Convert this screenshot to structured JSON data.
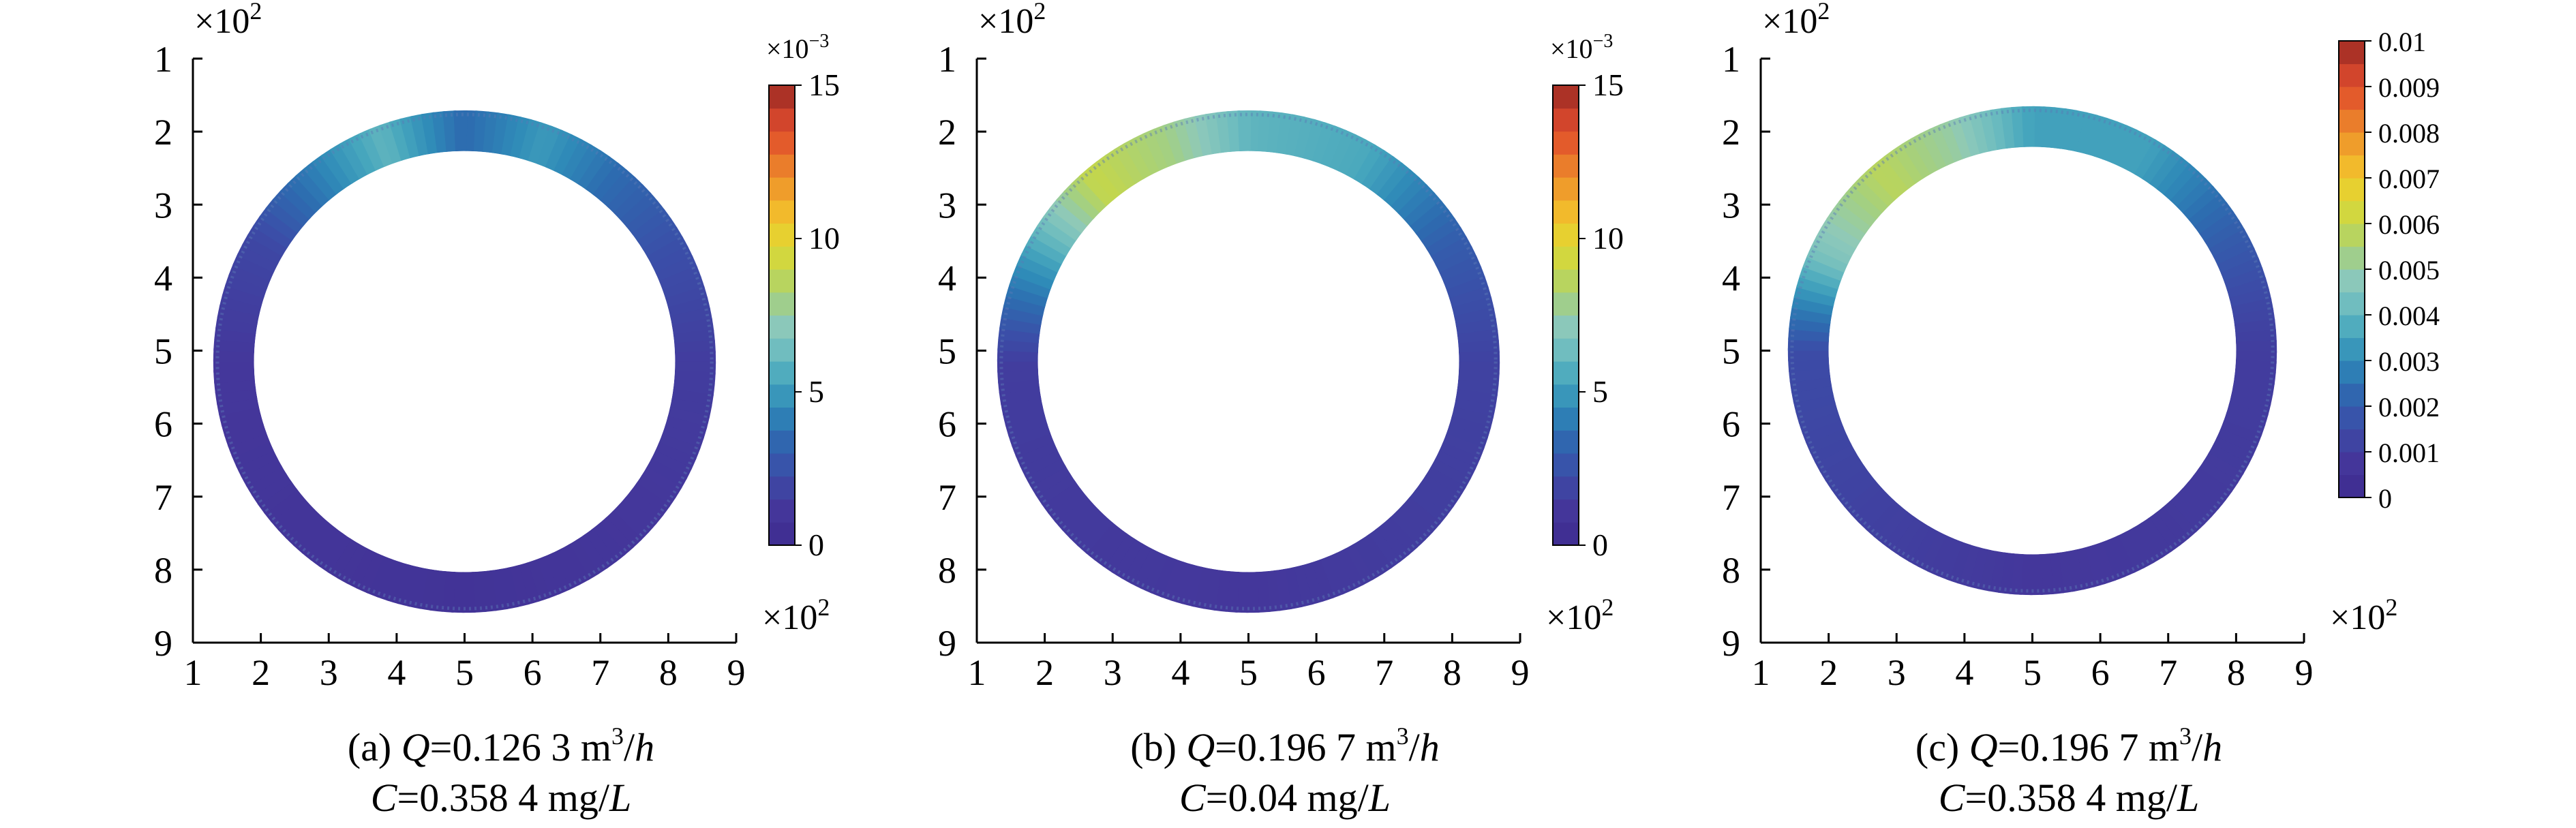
{
  "chart_data": [
    {
      "type": "heatmap",
      "panel_label": "(a)",
      "caption": {
        "q_value": "0.126 3",
        "q_unit_base": "m",
        "q_unit_exp": "3",
        "q_unit_den": "h",
        "c_value": "0.358 4",
        "c_unit": "mg/",
        "c_unit_den": "L"
      },
      "x_ticks": [
        "1",
        "2",
        "3",
        "4",
        "5",
        "6",
        "7",
        "8",
        "9"
      ],
      "y_ticks": [
        "1",
        "2",
        "3",
        "4",
        "5",
        "6",
        "7",
        "8",
        "9"
      ],
      "x_multiplier": "×10",
      "x_multiplier_exp": "2",
      "y_multiplier": "×10",
      "y_multiplier_exp": "2",
      "xlim": [
        1,
        9
      ],
      "ylim": [
        1,
        9
      ],
      "y_inverted": true,
      "ring": {
        "center_x": 5.0,
        "center_y": 5.15,
        "outer_radius": 3.7,
        "inner_radius": 3.1
      },
      "colorbar": {
        "multiplier": "×10",
        "multiplier_exp": "−3",
        "ticks": [
          "0",
          "5",
          "10",
          "15"
        ],
        "tick_values": [
          0,
          5,
          10,
          15
        ],
        "range": [
          0,
          15
        ]
      },
      "field": [
        {
          "angle_deg": 0,
          "value": 3.5
        },
        {
          "angle_deg": 20,
          "value": 5
        },
        {
          "angle_deg": 40,
          "value": 3.5
        },
        {
          "angle_deg": 60,
          "value": 2.5
        },
        {
          "angle_deg": 90,
          "value": 1.5
        },
        {
          "angle_deg": 180,
          "value": 0.8
        },
        {
          "angle_deg": 270,
          "value": 1.2
        },
        {
          "angle_deg": 300,
          "value": 2
        },
        {
          "angle_deg": 320,
          "value": 4
        },
        {
          "angle_deg": 340,
          "value": 6
        },
        {
          "angle_deg": 360,
          "value": 3.5
        }
      ]
    },
    {
      "type": "heatmap",
      "panel_label": "(b)",
      "caption": {
        "q_value": "0.196 7",
        "q_unit_base": "m",
        "q_unit_exp": "3",
        "q_unit_den": "h",
        "c_value": "0.04",
        "c_unit": "mg/",
        "c_unit_den": "L"
      },
      "x_ticks": [
        "1",
        "2",
        "3",
        "4",
        "5",
        "6",
        "7",
        "8",
        "9"
      ],
      "y_ticks": [
        "1",
        "2",
        "3",
        "4",
        "5",
        "6",
        "7",
        "8",
        "9"
      ],
      "x_multiplier": "×10",
      "x_multiplier_exp": "2",
      "y_multiplier": "×10",
      "y_multiplier_exp": "2",
      "xlim": [
        1,
        9
      ],
      "ylim": [
        1,
        9
      ],
      "y_inverted": true,
      "ring": {
        "center_x": 5.0,
        "center_y": 5.15,
        "outer_radius": 3.7,
        "inner_radius": 3.1
      },
      "colorbar": {
        "multiplier": "×10",
        "multiplier_exp": "−3",
        "ticks": [
          "0",
          "5",
          "10",
          "15"
        ],
        "tick_values": [
          0,
          5,
          10,
          15
        ],
        "range": [
          0,
          15
        ]
      },
      "field": [
        {
          "angle_deg": 0,
          "value": 6
        },
        {
          "angle_deg": 30,
          "value": 5.5
        },
        {
          "angle_deg": 60,
          "value": 3
        },
        {
          "angle_deg": 90,
          "value": 1.8
        },
        {
          "angle_deg": 180,
          "value": 1.2
        },
        {
          "angle_deg": 270,
          "value": 1.5
        },
        {
          "angle_deg": 295,
          "value": 5
        },
        {
          "angle_deg": 320,
          "value": 9
        },
        {
          "angle_deg": 340,
          "value": 8
        },
        {
          "angle_deg": 360,
          "value": 6
        }
      ]
    },
    {
      "type": "heatmap",
      "panel_label": "(c)",
      "caption": {
        "q_value": "0.196 7",
        "q_unit_base": "m",
        "q_unit_exp": "3",
        "q_unit_den": "h",
        "c_value": "0.358 4",
        "c_unit": "mg/",
        "c_unit_den": "L"
      },
      "x_ticks": [
        "1",
        "2",
        "3",
        "4",
        "5",
        "6",
        "7",
        "8",
        "9"
      ],
      "y_ticks": [
        "1",
        "2",
        "3",
        "4",
        "5",
        "6",
        "7",
        "8",
        "9"
      ],
      "x_multiplier": "×10",
      "x_multiplier_exp": "2",
      "y_multiplier": "×10",
      "y_multiplier_exp": "2",
      "xlim": [
        1,
        9
      ],
      "ylim": [
        1,
        9
      ],
      "y_inverted": true,
      "ring": {
        "center_x": 5.0,
        "center_y": 5.0,
        "outer_radius": 3.6,
        "inner_radius": 3.0
      },
      "colorbar": {
        "multiplier": "",
        "multiplier_exp": "",
        "ticks": [
          "0",
          "0.001",
          "0.002",
          "0.003",
          "0.004",
          "0.005",
          "0.006",
          "0.007",
          "0.008",
          "0.009",
          "0.01"
        ],
        "tick_values": [
          0,
          0.001,
          0.002,
          0.003,
          0.004,
          0.005,
          0.006,
          0.007,
          0.008,
          0.009,
          0.01
        ],
        "range": [
          0,
          0.01
        ]
      },
      "field": [
        {
          "angle_deg": 0,
          "value": 0.0035
        },
        {
          "angle_deg": 30,
          "value": 0.0035
        },
        {
          "angle_deg": 60,
          "value": 0.002
        },
        {
          "angle_deg": 90,
          "value": 0.001
        },
        {
          "angle_deg": 180,
          "value": 0.0008
        },
        {
          "angle_deg": 270,
          "value": 0.0015
        },
        {
          "angle_deg": 295,
          "value": 0.0045
        },
        {
          "angle_deg": 320,
          "value": 0.0058
        },
        {
          "angle_deg": 340,
          "value": 0.005
        },
        {
          "angle_deg": 360,
          "value": 0.0035
        }
      ]
    }
  ]
}
